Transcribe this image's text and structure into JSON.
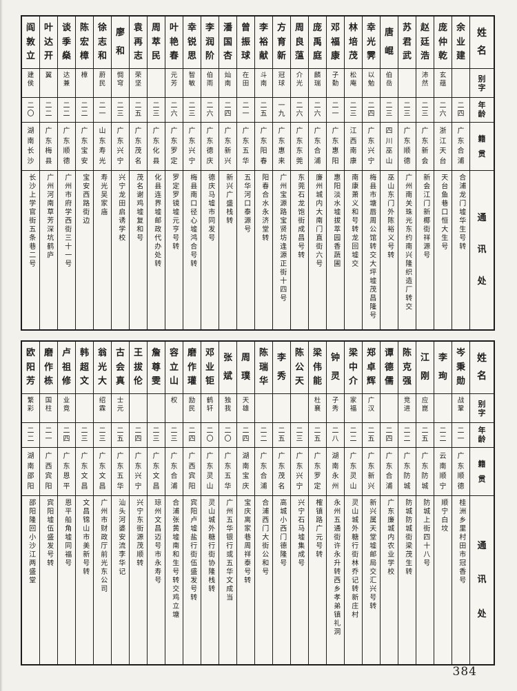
{
  "page": {
    "number": "384",
    "paper_color": "#f2f1ec",
    "ink_color": "#1d1d1d"
  },
  "header_labels": {
    "name": "姓名",
    "zi": "别字",
    "age": "年龄",
    "origin": "籍贯",
    "address": "通讯处"
  },
  "tables": {
    "top": {
      "entries": [
        {
          "name": "余业建",
          "zi": "",
          "age": "二四",
          "origin": "广东合浦",
          "address": "合浦龙门墟华生号转"
        },
        {
          "name": "庞仲乾",
          "zi": "玄蕴",
          "age": "二六",
          "origin": "浙江天台",
          "address": "天台鱼巷口恒大生号"
        },
        {
          "name": "赵廷浩",
          "zi": "沛然",
          "age": "二三",
          "origin": "广东新会",
          "address": "新会江门新椰街祥源号"
        },
        {
          "name": "苏君武",
          "zi": "",
          "age": "二三",
          "origin": "广东顺德",
          "address": "广州南关珠光东约南兴隆织造厂转交"
        },
        {
          "name": "唐崐",
          "zi": "伯岳",
          "age": "二三",
          "origin": "四川巫山",
          "address": "巫山东门外陈裕义号转"
        },
        {
          "name": "幸光霁",
          "zi": "以勉",
          "age": "二四",
          "origin": "广东兴宁",
          "address": "梅县市塘唇周公馆转交大坪墟茂昌隆号"
        },
        {
          "name": "林培茂",
          "zi": "松庵",
          "age": "二三",
          "origin": "江西南康",
          "address": "南康萧义和号转龙回墟交"
        },
        {
          "name": "邓福康",
          "zi": "子勤",
          "age": "二一",
          "origin": "广东惠阳",
          "address": "惠阳淡水墟拔萃园香蔬圃"
        },
        {
          "name": "庞禹庭",
          "zi": "麟瑞",
          "age": "二六",
          "origin": "广东合浦",
          "address": "廉州城内大南门直街六号"
        },
        {
          "name": "周良蕰",
          "zi": "介光",
          "age": "二六",
          "origin": "广东东莞",
          "address": "东莞石龙饱街成昌号转"
        },
        {
          "name": "方育新",
          "zi": "冠球",
          "age": "一九",
          "origin": "广东惠来",
          "address": "广州宝源路宝贤坊逢源正街十四号"
        },
        {
          "name": "李裕献",
          "zi": "斗南",
          "age": "二五",
          "origin": "广东阳春",
          "address": "阳春合水永济堂转"
        },
        {
          "name": "曾振球",
          "zi": "在田",
          "age": "二一",
          "origin": "广东五华",
          "address": "五华河口泰源号"
        },
        {
          "name": "潘国杏",
          "zi": "灿南",
          "age": "二四",
          "origin": "广东新兴",
          "address": "新兴广盛栈转"
        },
        {
          "name": "李润阶",
          "zi": "伯雨",
          "age": "二六",
          "origin": "广东德庆",
          "address": "德庆马墟市同发号"
        },
        {
          "name": "幸锐思",
          "zi": "智敏",
          "age": "二三",
          "origin": "广东兴宁",
          "address": "梅县南口径心墟鸿合号转"
        },
        {
          "name": "叶艳春",
          "zi": "元芳",
          "age": "二六",
          "origin": "广东罗定",
          "address": "罗定罗镜墟元亨号转"
        },
        {
          "name": "周萃民",
          "zi": "",
          "age": "二三",
          "origin": "广东化县",
          "address": "化县连界墟邮政代办处转"
        },
        {
          "name": "袁再志",
          "zi": "荣坚",
          "age": "二五",
          "origin": "广东茂名",
          "address": "茂名谢鸡墟复和号"
        },
        {
          "name": "廖和",
          "zi": "惆穹",
          "age": "二三",
          "origin": "广东兴宁",
          "address": "兴宁龙田启诱学校"
        },
        {
          "name": "徐志和",
          "zi": "蔚民",
          "age": "二一",
          "origin": "山东寿光",
          "address": "寿光吴家庙"
        },
        {
          "name": "陈宏樟",
          "zi": "樟",
          "age": "二二",
          "origin": "广东宝安",
          "address": "宝安西路街边"
        },
        {
          "name": "谈季燊",
          "zi": "达兼",
          "age": "二二",
          "origin": "广东顺德",
          "address": "广州市府学西街三十一号"
        },
        {
          "name": "叶达开",
          "zi": "翼",
          "age": "二二",
          "origin": "广东梅县",
          "address": "广州河南草芳深坑鹤庐"
        },
        {
          "name": "阎敦立",
          "zi": "建侯",
          "age": "二〇",
          "origin": "湖南长沙",
          "address": "长沙上学官街五条巷二号"
        }
      ]
    },
    "bottom": {
      "entries": [
        {
          "name": "岑秉勋",
          "zi": "战鞏",
          "age": "二一",
          "origin": "广东顺德",
          "address": "桂洲乡里村田市冠香号"
        },
        {
          "name": "李珣",
          "zi": "",
          "age": "二二",
          "origin": "云南顺宁",
          "address": "顺宁白坟"
        },
        {
          "name": "江刚",
          "zi": "应崑",
          "age": "二五",
          "origin": "广东防城",
          "address": "防城上街四十八号"
        },
        {
          "name": "陈克强",
          "zi": "竞进",
          "age": "二二",
          "origin": "广东防城",
          "address": "防城防城街梁茂生转"
        },
        {
          "name": "谭德儒",
          "zi": "",
          "age": "二四",
          "origin": "广东合浦",
          "address": "广东廉城内农业学校"
        },
        {
          "name": "郑卓辉",
          "zi": "广汉",
          "age": "二五",
          "origin": "广东新兴",
          "address": "新兴属天堂墟邮局交汇兴号转"
        },
        {
          "name": "梁中介",
          "zi": "家福",
          "age": "二二",
          "origin": "广东灵山",
          "address": "灵山城外糖行街林乔记转新庄村"
        },
        {
          "name": "钟灵",
          "zi": "子秀",
          "age": "二八",
          "origin": "湖南永州",
          "address": "永州五通街许永升转西乡孝弟镇礼洞"
        },
        {
          "name": "梁伟能",
          "zi": "杜襄",
          "age": "二五",
          "origin": "广东罗定",
          "address": "榷镇路广元号转"
        },
        {
          "name": "陈公天",
          "zi": "",
          "age": "二三",
          "origin": "广东兴宁",
          "address": "兴宁石马墟集成号"
        },
        {
          "name": "李秀",
          "zi": "",
          "age": "二五",
          "origin": "广东茂名",
          "address": "高城小西门德隆号"
        },
        {
          "name": "陈瑞华",
          "zi": "",
          "age": "二二",
          "origin": "广东合浦",
          "address": "合浦西门大街公和号"
        },
        {
          "name": "周璞",
          "zi": "天雄",
          "age": "二四",
          "origin": "湖南宝庆",
          "address": "宝庆离家巷周祥泰号转"
        },
        {
          "name": "张斌",
          "zi": "独我",
          "age": "二〇",
          "origin": "广东五华",
          "address": "广州五华银行或五华文成当"
        },
        {
          "name": "邓业钜",
          "zi": "鹤轩",
          "age": "二〇",
          "origin": "广东灵山",
          "address": "灵山城外糖行街协隆栈转"
        },
        {
          "name": "磨作瓘",
          "zi": "励民",
          "age": "二四",
          "origin": "广西宾阳",
          "address": "宾阳卢墟盐行街伍盛发号转"
        },
        {
          "name": "容立山",
          "zi": "权",
          "age": "二三",
          "origin": "广东合浦",
          "address": "合浦张黄墟南和生号转交鸡立塘"
        },
        {
          "name": "詹尊雯",
          "zi": "",
          "age": "二三",
          "origin": "广东文昌",
          "address": "琼州文昌迈号市永寿号"
        },
        {
          "name": "王拔伦",
          "zi": "",
          "age": "二四",
          "origin": "广东兴宁",
          "address": "兴宁东街源茂顺转"
        },
        {
          "name": "古会真",
          "zi": "士元",
          "age": "二五",
          "origin": "广东五华",
          "address": "汕头河婆安流李华记"
        },
        {
          "name": "翁光大",
          "zi": "绍霖",
          "age": "二三",
          "origin": "广东文昌",
          "address": "广州市财政厅前光东公司"
        },
        {
          "name": "韩超文",
          "zi": "",
          "age": "二三",
          "origin": "广东文昌",
          "address": "文昌锦山市美新号转"
        },
        {
          "name": "卢祖修",
          "zi": "业竟",
          "age": "二四",
          "origin": "广东恩平",
          "address": "恩平船角墟同福号"
        },
        {
          "name": "磨作栋",
          "zi": "国柱",
          "age": "二一",
          "origin": "广西宾阳",
          "address": "宾阳墟伍盛发号转"
        },
        {
          "name": "欧阳芳",
          "zi": "繁彩",
          "age": "二二",
          "origin": "湖南邵阳",
          "address": "邵阳隆回小沙江两盛堂"
        }
      ]
    }
  }
}
